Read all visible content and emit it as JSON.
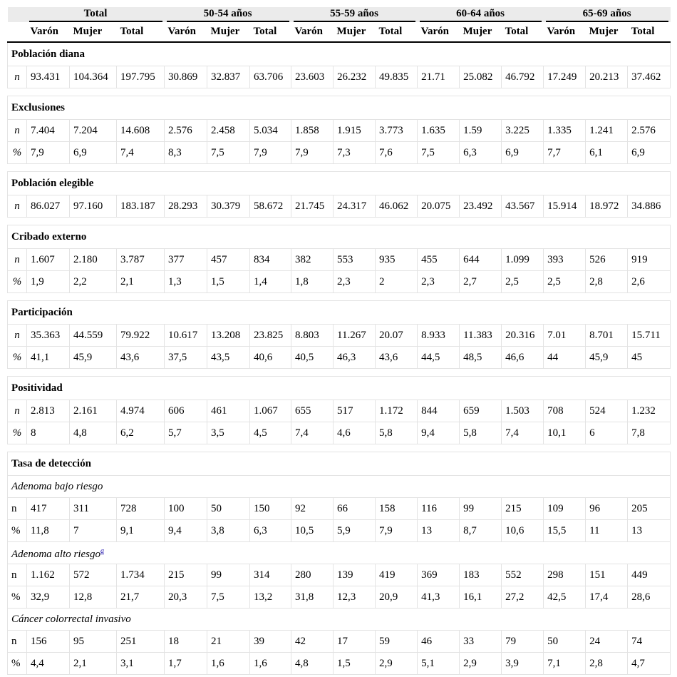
{
  "header": {
    "groups": [
      {
        "label": "Total",
        "columns": [
          "Varón",
          "Mujer",
          "Total"
        ]
      },
      {
        "label": "50-54 años",
        "columns": [
          "Varón",
          "Mujer",
          "Total"
        ]
      },
      {
        "label": "55-59 años",
        "columns": [
          "Varón",
          "Mujer",
          "Total"
        ]
      },
      {
        "label": "60-64 años",
        "columns": [
          "Varón",
          "Mujer",
          "Total"
        ]
      },
      {
        "label": "65-69 años",
        "columns": [
          "Varón",
          "Mujer",
          "Total"
        ]
      }
    ]
  },
  "sections": [
    {
      "title": "Población diana",
      "rows": [
        {
          "label": "n",
          "cells": [
            "93.431",
            "104.364",
            "197.795",
            "30.869",
            "32.837",
            "63.706",
            "23.603",
            "26.232",
            "49.835",
            "21.71",
            "25.082",
            "46.792",
            "17.249",
            "20.213",
            "37.462"
          ]
        }
      ]
    },
    {
      "title": "Exclusiones",
      "rows": [
        {
          "label": "n",
          "cells": [
            "7.404",
            "7.204",
            "14.608",
            "2.576",
            "2.458",
            "5.034",
            "1.858",
            "1.915",
            "3.773",
            "1.635",
            "1.59",
            "3.225",
            "1.335",
            "1.241",
            "2.576"
          ]
        },
        {
          "label": "%",
          "cells": [
            "7,9",
            "6,9",
            "7,4",
            "8,3",
            "7,5",
            "7,9",
            "7,9",
            "7,3",
            "7,6",
            "7,5",
            "6,3",
            "6,9",
            "7,7",
            "6,1",
            "6,9"
          ]
        }
      ]
    },
    {
      "title": "Población elegible",
      "rows": [
        {
          "label": "n",
          "cells": [
            "86.027",
            "97.160",
            "183.187",
            "28.293",
            "30.379",
            "58.672",
            "21.745",
            "24.317",
            "46.062",
            "20.075",
            "23.492",
            "43.567",
            "15.914",
            "18.972",
            "34.886"
          ]
        }
      ]
    },
    {
      "title": "Cribado externo",
      "rows": [
        {
          "label": "n",
          "cells": [
            "1.607",
            "2.180",
            "3.787",
            "377",
            "457",
            "834",
            "382",
            "553",
            "935",
            "455",
            "644",
            "1.099",
            "393",
            "526",
            "919"
          ]
        },
        {
          "label": "%",
          "cells": [
            "1,9",
            "2,2",
            "2,1",
            "1,3",
            "1,5",
            "1,4",
            "1,8",
            "2,3",
            "2",
            "2,3",
            "2,7",
            "2,5",
            "2,5",
            "2,8",
            "2,6"
          ]
        }
      ]
    },
    {
      "title": "Participación",
      "rows": [
        {
          "label": "n",
          "cells": [
            "35.363",
            "44.559",
            "79.922",
            "10.617",
            "13.208",
            "23.825",
            "8.803",
            "11.267",
            "20.07",
            "8.933",
            "11.383",
            "20.316",
            "7.01",
            "8.701",
            "15.711"
          ]
        },
        {
          "label": "%",
          "cells": [
            "41,1",
            "45,9",
            "43,6",
            "37,5",
            "43,5",
            "40,6",
            "40,5",
            "46,3",
            "43,6",
            "44,5",
            "48,5",
            "46,6",
            "44",
            "45,9",
            "45"
          ]
        }
      ]
    },
    {
      "title": "Positividad",
      "rows": [
        {
          "label": "n",
          "cells": [
            "2.813",
            "2.161",
            "4.974",
            "606",
            "461",
            "1.067",
            "655",
            "517",
            "1.172",
            "844",
            "659",
            "1.503",
            "708",
            "524",
            "1.232"
          ]
        },
        {
          "label": "%",
          "cells": [
            "8",
            "4,8",
            "6,2",
            "5,7",
            "3,5",
            "4,5",
            "7,4",
            "4,6",
            "5,8",
            "9,4",
            "5,8",
            "7,4",
            "10,1",
            "6",
            "7,8"
          ]
        }
      ]
    },
    {
      "title": "Tasa de detección",
      "subsections": [
        {
          "title": "Adenoma bajo riesgo",
          "rows": [
            {
              "label": "n",
              "cells": [
                "417",
                "311",
                "728",
                "100",
                "50",
                "150",
                "92",
                "66",
                "158",
                "116",
                "99",
                "215",
                "109",
                "96",
                "205"
              ]
            },
            {
              "label": "%",
              "cells": [
                "11,8",
                "7",
                "9,1",
                "9,4",
                "3,8",
                "6,3",
                "10,5",
                "5,9",
                "7,9",
                "13",
                "8,7",
                "10,6",
                "15,5",
                "11",
                "13"
              ]
            }
          ]
        },
        {
          "title": "Adenoma alto riesgo",
          "note": "a",
          "rows": [
            {
              "label": "n",
              "cells": [
                "1.162",
                "572",
                "1.734",
                "215",
                "99",
                "314",
                "280",
                "139",
                "419",
                "369",
                "183",
                "552",
                "298",
                "151",
                "449"
              ]
            },
            {
              "label": "%",
              "cells": [
                "32,9",
                "12,8",
                "21,7",
                "20,3",
                "7,5",
                "13,2",
                "31,8",
                "12,3",
                "20,9",
                "41,3",
                "16,1",
                "27,2",
                "42,5",
                "17,4",
                "28,6"
              ]
            }
          ]
        },
        {
          "title": "Cáncer colorrectal invasivo",
          "rows": [
            {
              "label": "n",
              "cells": [
                "156",
                "95",
                "251",
                "18",
                "21",
                "39",
                "42",
                "17",
                "59",
                "46",
                "33",
                "79",
                "50",
                "24",
                "74"
              ]
            },
            {
              "label": "%",
              "cells": [
                "4,4",
                "2,1",
                "3,1",
                "1,7",
                "1,6",
                "1,6",
                "4,8",
                "1,5",
                "2,9",
                "5,1",
                "2,9",
                "3,9",
                "7,1",
                "2,8",
                "4,7"
              ]
            }
          ]
        }
      ]
    }
  ]
}
